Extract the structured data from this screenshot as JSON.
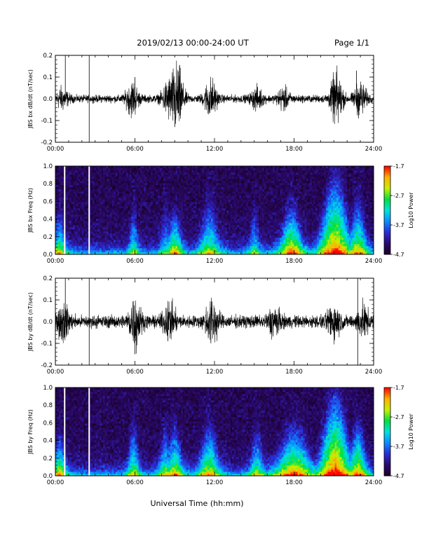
{
  "header": {
    "title": "2019/02/13  00:00-24:00 UT",
    "page": "Page 1/1"
  },
  "x_title": "Universal Time (hh:mm)",
  "x_ticks": [
    "00:00",
    "06:00",
    "12:00",
    "18:00",
    "24:00"
  ],
  "colors": {
    "trace": "#000000",
    "colormap": [
      "#1a0026",
      "#2a0a6e",
      "#2b2bd6",
      "#0a8cff",
      "#00e0e0",
      "#00e040",
      "#c8f000",
      "#ffb000",
      "#ff0000"
    ]
  },
  "chart_data": [
    {
      "type": "line",
      "name": "bx-waveform",
      "ylabel": "JBS bx dB/dt (nT/sec)",
      "xlim": [
        0,
        24
      ],
      "ylim": [
        -0.2,
        0.2
      ],
      "y_ticks": [
        "-0.2",
        "-0.1",
        "0.0",
        "0.1",
        "0.2"
      ],
      "baseline_amplitude": 0.012,
      "activity_bursts": [
        {
          "t": 0.5,
          "amp": 0.03
        },
        {
          "t": 5.8,
          "amp": 0.05
        },
        {
          "t": 8.5,
          "amp": 0.05
        },
        {
          "t": 9.2,
          "amp": 0.1
        },
        {
          "t": 11.7,
          "amp": 0.06
        },
        {
          "t": 15.2,
          "amp": 0.03
        },
        {
          "t": 17.2,
          "amp": 0.03
        },
        {
          "t": 21.2,
          "amp": 0.08
        },
        {
          "t": 23.0,
          "amp": 0.05
        }
      ],
      "spikes": [
        {
          "t": 0.75,
          "y": 0.2
        },
        {
          "t": 2.55,
          "y": 0.2
        },
        {
          "t": 2.55,
          "y": -0.2
        },
        {
          "t": 9.0,
          "y": -0.13
        },
        {
          "t": 6.0,
          "y": 0.1
        },
        {
          "t": 22.7,
          "y": 0.13
        }
      ]
    },
    {
      "type": "heatmap",
      "name": "bx-spectrogram",
      "ylabel": "JBS bx Freq (Hz)",
      "xlim": [
        0,
        24
      ],
      "ylim": [
        0,
        1.0
      ],
      "y_ticks": [
        "0.0",
        "0.2",
        "0.4",
        "0.6",
        "0.8",
        "1.0"
      ],
      "colorbar": {
        "label": "Log10 Power",
        "range": [
          -4.7,
          -1.7
        ],
        "ticks": [
          "-1.7",
          "-2.7",
          "-3.7",
          "-4.7"
        ]
      },
      "data_gaps_hours": [
        0.7,
        2.55
      ],
      "enhancements": [
        {
          "t": 0.3,
          "width": 0.6,
          "f": 0.4,
          "level": -3.4
        },
        {
          "t": 5.9,
          "width": 0.4,
          "f": 0.45,
          "level": -3.7
        },
        {
          "t": 8.3,
          "width": 0.5,
          "f": 0.45,
          "level": -3.9
        },
        {
          "t": 9.0,
          "width": 0.7,
          "f": 0.4,
          "level": -3.3
        },
        {
          "t": 11.6,
          "width": 0.9,
          "f": 0.5,
          "level": -3.5
        },
        {
          "t": 15.0,
          "width": 0.5,
          "f": 0.45,
          "level": -3.9
        },
        {
          "t": 17.8,
          "width": 1.0,
          "f": 0.45,
          "level": -3.0
        },
        {
          "t": 21.1,
          "width": 1.3,
          "f": 0.7,
          "level": -2.7
        },
        {
          "t": 22.8,
          "width": 0.8,
          "f": 0.5,
          "level": -3.2
        }
      ]
    },
    {
      "type": "line",
      "name": "by-waveform",
      "ylabel": "JBS by dB/dt (nT/sec)",
      "xlim": [
        0,
        24
      ],
      "ylim": [
        -0.2,
        0.2
      ],
      "y_ticks": [
        "-0.2",
        "-0.1",
        "0.0",
        "0.1",
        "0.2"
      ],
      "baseline_amplitude": 0.02,
      "activity_bursts": [
        {
          "t": 0.6,
          "amp": 0.05
        },
        {
          "t": 6.0,
          "amp": 0.07
        },
        {
          "t": 8.6,
          "amp": 0.05
        },
        {
          "t": 11.8,
          "amp": 0.07
        },
        {
          "t": 16.5,
          "amp": 0.04
        },
        {
          "t": 21.0,
          "amp": 0.05
        },
        {
          "t": 23.2,
          "amp": 0.04
        }
      ],
      "spikes": [
        {
          "t": 0.75,
          "y": 0.2
        },
        {
          "t": 2.55,
          "y": 0.2
        },
        {
          "t": 2.55,
          "y": -0.2
        },
        {
          "t": 6.0,
          "y": -0.15
        },
        {
          "t": 22.8,
          "y": 0.2
        },
        {
          "t": 22.8,
          "y": -0.2
        }
      ]
    },
    {
      "type": "heatmap",
      "name": "by-spectrogram",
      "ylabel": "JBS by Freq (Hz)",
      "xlim": [
        0,
        24
      ],
      "ylim": [
        0,
        1.0
      ],
      "y_ticks": [
        "0.0",
        "0.2",
        "0.4",
        "0.6",
        "0.8",
        "1.0"
      ],
      "colorbar": {
        "label": "Log10 Power",
        "range": [
          -4.7,
          -1.7
        ],
        "ticks": [
          "-1.7",
          "-2.7",
          "-3.7",
          "-4.7"
        ]
      },
      "data_gaps_hours": [
        0.7,
        2.55
      ],
      "enhancements": [
        {
          "t": 0.3,
          "width": 0.6,
          "f": 0.4,
          "level": -3.3
        },
        {
          "t": 5.9,
          "width": 0.5,
          "f": 0.5,
          "level": -3.5
        },
        {
          "t": 8.3,
          "width": 0.6,
          "f": 0.45,
          "level": -3.6
        },
        {
          "t": 9.0,
          "width": 0.7,
          "f": 0.45,
          "level": -3.3
        },
        {
          "t": 11.6,
          "width": 0.9,
          "f": 0.5,
          "level": -3.3
        },
        {
          "t": 15.2,
          "width": 0.6,
          "f": 0.45,
          "level": -3.6
        },
        {
          "t": 18.0,
          "width": 1.6,
          "f": 0.45,
          "level": -3.0
        },
        {
          "t": 21.1,
          "width": 1.3,
          "f": 0.75,
          "level": -2.6
        },
        {
          "t": 22.8,
          "width": 0.8,
          "f": 0.5,
          "level": -3.1
        }
      ]
    }
  ]
}
